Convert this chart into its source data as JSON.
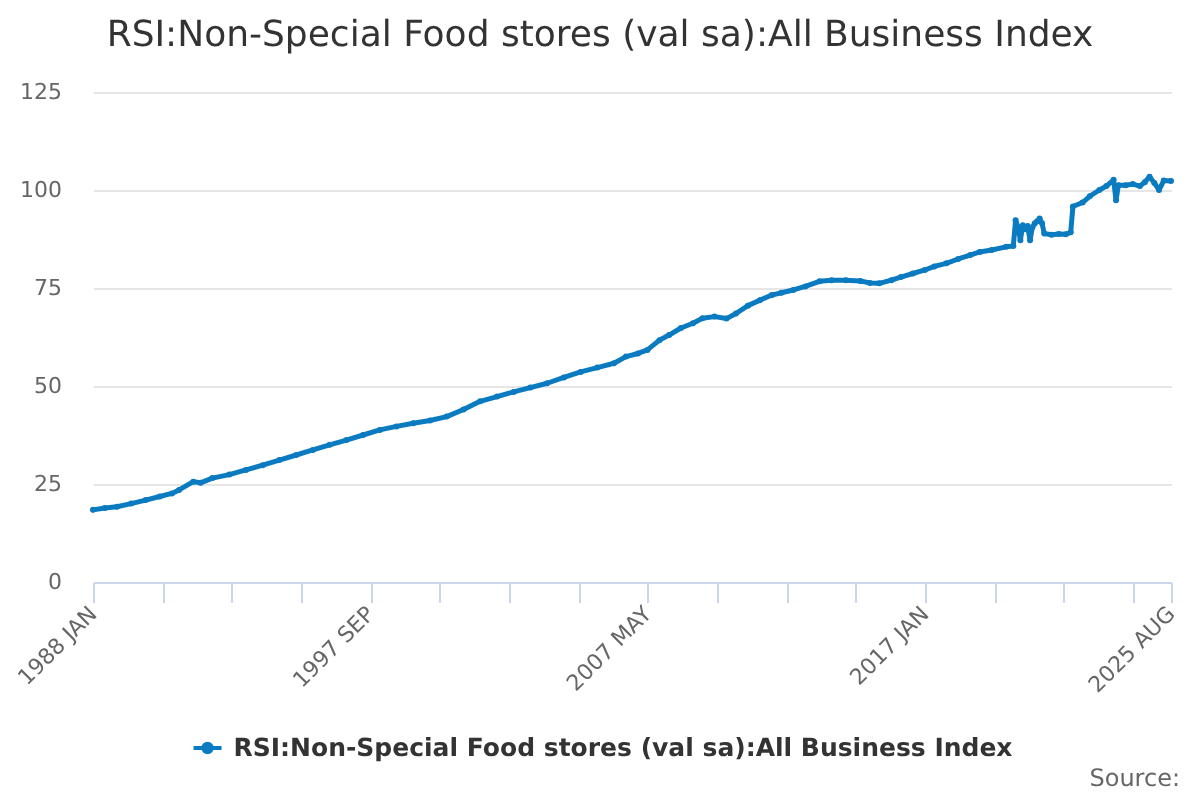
{
  "chart_data": {
    "type": "line",
    "title": "RSI:Non-Special Food stores (val sa):All Business Index",
    "x": [
      "1988-01",
      "1988-06",
      "1988-11",
      "1989-05",
      "1989-11",
      "1990-05",
      "1990-10",
      "1991-01",
      "1991-07",
      "1991-10",
      "1992-03",
      "1992-10",
      "1993-05",
      "1993-12",
      "1994-07",
      "1995-02",
      "1995-09",
      "1996-04",
      "1996-11",
      "1997-06",
      "1998-01",
      "1998-08",
      "1999-03",
      "1999-10",
      "2000-05",
      "2000-12",
      "2001-07",
      "2002-02",
      "2002-09",
      "2003-04",
      "2003-11",
      "2004-06",
      "2005-01",
      "2005-08",
      "2006-03",
      "2006-08",
      "2007-01",
      "2007-05",
      "2007-10",
      "2008-02",
      "2008-07",
      "2008-12",
      "2009-04",
      "2009-09",
      "2010-02",
      "2010-06",
      "2010-11",
      "2011-04",
      "2011-09",
      "2012-01",
      "2012-06",
      "2012-11",
      "2013-05",
      "2013-10",
      "2014-04",
      "2014-10",
      "2015-02",
      "2015-06",
      "2015-11",
      "2016-03",
      "2016-08",
      "2017-01",
      "2017-05",
      "2017-10",
      "2018-03",
      "2018-08",
      "2018-12",
      "2019-05",
      "2019-11",
      "2020-02",
      "2020-03",
      "2020-04",
      "2020-05",
      "2020-06",
      "2020-07",
      "2020-08",
      "2020-09",
      "2020-10",
      "2020-11",
      "2020-12",
      "2021-01",
      "2021-02",
      "2021-03",
      "2021-06",
      "2021-09",
      "2021-12",
      "2022-02",
      "2022-03",
      "2022-07",
      "2022-10",
      "2023-02",
      "2023-05",
      "2023-08",
      "2023-09",
      "2023-10",
      "2024-01",
      "2024-04",
      "2024-07",
      "2024-09",
      "2024-11",
      "2025-01",
      "2025-03",
      "2025-05",
      "2025-08"
    ],
    "series": [
      {
        "name": "RSI:Non-Special Food stores (val sa):All Business Index",
        "color": "#0b7bc1",
        "values": [
          18.4,
          18.9,
          19.2,
          20.0,
          20.9,
          21.8,
          22.6,
          23.5,
          25.6,
          25.3,
          26.5,
          27.4,
          28.6,
          29.8,
          31.1,
          32.4,
          33.7,
          35.0,
          36.2,
          37.5,
          38.8,
          39.7,
          40.5,
          41.2,
          42.2,
          44.0,
          46.1,
          47.3,
          48.5,
          49.6,
          50.7,
          52.2,
          53.6,
          54.7,
          55.8,
          57.5,
          58.3,
          59.2,
          61.7,
          63.0,
          64.8,
          66.0,
          67.3,
          67.7,
          67.2,
          68.5,
          70.5,
          71.9,
          73.2,
          73.8,
          74.5,
          75.4,
          76.7,
          77.0,
          77.0,
          76.8,
          76.3,
          76.2,
          77.0,
          77.8,
          78.7,
          79.6,
          80.5,
          81.3,
          82.4,
          83.4,
          84.2,
          84.7,
          85.5,
          85.7,
          92.3,
          90.5,
          87.2,
          91.0,
          90.0,
          90.8,
          87.2,
          90.5,
          91.5,
          92.0,
          92.7,
          91.5,
          88.9,
          88.6,
          88.8,
          88.7,
          89.2,
          95.8,
          96.8,
          98.4,
          100.0,
          101.0,
          102.6,
          97.4,
          101.2,
          101.2,
          101.5,
          101.0,
          102.0,
          103.4,
          101.8,
          100.0,
          102.4,
          102.3
        ]
      }
    ],
    "xlim": [
      "1988-01",
      "2025-08"
    ],
    "xticks": [
      {
        "value": "1988-01",
        "label": "1988 JAN"
      },
      {
        "value": "1990-06",
        "label": null
      },
      {
        "value": "1992-11",
        "label": null
      },
      {
        "value": "1995-04",
        "label": null
      },
      {
        "value": "1997-09",
        "label": "1997 SEP"
      },
      {
        "value": "2000-02",
        "label": null
      },
      {
        "value": "2002-07",
        "label": null
      },
      {
        "value": "2004-12",
        "label": null
      },
      {
        "value": "2007-05",
        "label": "2007 MAY"
      },
      {
        "value": "2009-10",
        "label": null
      },
      {
        "value": "2012-03",
        "label": null
      },
      {
        "value": "2014-08",
        "label": null
      },
      {
        "value": "2017-01",
        "label": "2017 JAN"
      },
      {
        "value": "2019-06",
        "label": null
      },
      {
        "value": "2021-11",
        "label": null
      },
      {
        "value": "2024-04",
        "label": null
      },
      {
        "value": "2025-08",
        "label": "2025 AUG"
      }
    ],
    "ylim": [
      0,
      125
    ],
    "yticks": [
      0,
      25,
      50,
      75,
      100,
      125
    ],
    "grid": "y",
    "legend": "bottom",
    "marker": "circle",
    "line_style": "solid",
    "annotations": [
      "Source:"
    ]
  }
}
